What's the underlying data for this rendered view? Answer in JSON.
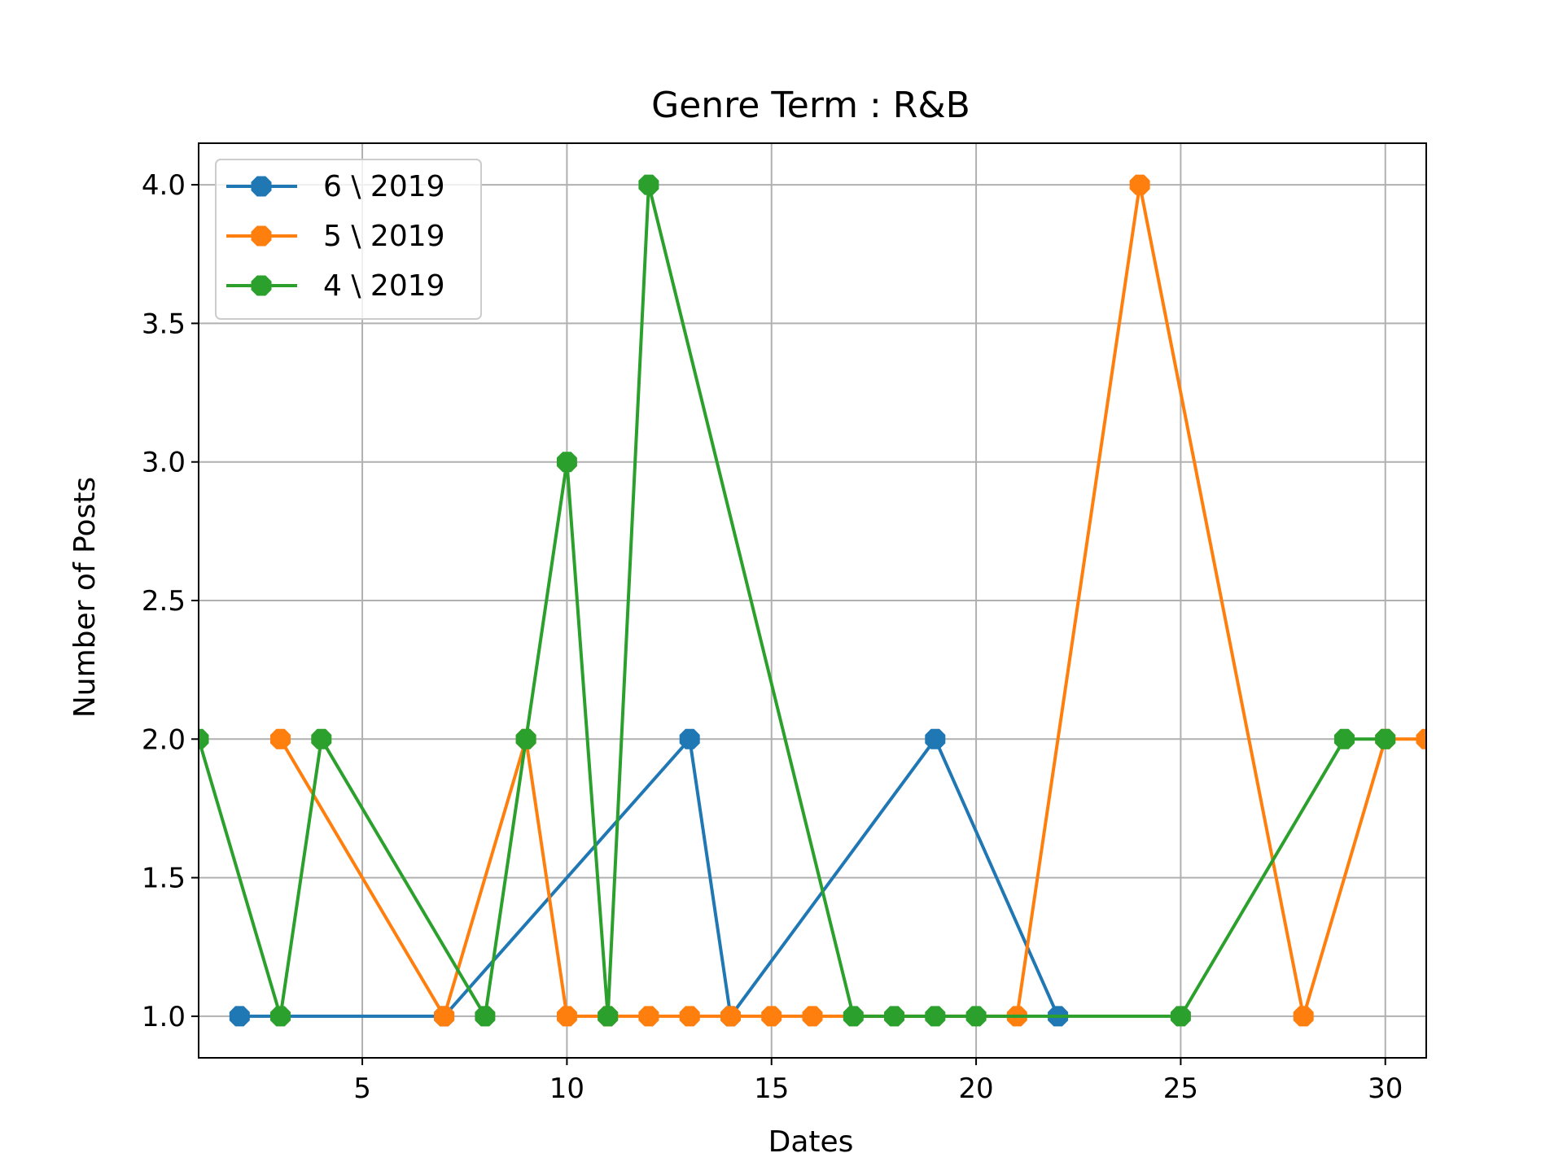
{
  "chart_data": {
    "type": "line",
    "title": "Genre Term : R&B",
    "xlabel": "Dates",
    "ylabel": "Number of Posts",
    "xlim": [
      1,
      31
    ],
    "ylim": [
      0.85,
      4.15
    ],
    "xticks": [
      5,
      10,
      15,
      20,
      25,
      30
    ],
    "yticks": [
      1.0,
      1.5,
      2.0,
      2.5,
      3.0,
      3.5,
      4.0
    ],
    "xtick_labels": [
      "5",
      "10",
      "15",
      "20",
      "25",
      "30"
    ],
    "ytick_labels": [
      "1.0",
      "1.5",
      "2.0",
      "2.5",
      "3.0",
      "3.5",
      "4.0"
    ],
    "grid": true,
    "legend_position": "top-left",
    "series": [
      {
        "name": "6 \\ 2019",
        "color": "#1f77b4",
        "x": [
          2,
          7,
          13,
          14,
          19,
          22
        ],
        "y": [
          1,
          1,
          2,
          1,
          2,
          1
        ]
      },
      {
        "name": "5 \\ 2019",
        "color": "#ff7f0e",
        "x": [
          3,
          7,
          9,
          10,
          11,
          12,
          13,
          14,
          15,
          16,
          21,
          24,
          28,
          30,
          31
        ],
        "y": [
          2,
          1,
          2,
          1,
          1,
          1,
          1,
          1,
          1,
          1,
          1,
          4,
          1,
          2,
          2
        ]
      },
      {
        "name": "4 \\ 2019",
        "color": "#2ca02c",
        "x": [
          1,
          3,
          4,
          8,
          9,
          10,
          11,
          12,
          17,
          18,
          19,
          20,
          25,
          29,
          30
        ],
        "y": [
          2,
          1,
          2,
          1,
          2,
          3,
          1,
          4,
          1,
          1,
          1,
          1,
          1,
          2,
          2
        ]
      }
    ]
  }
}
